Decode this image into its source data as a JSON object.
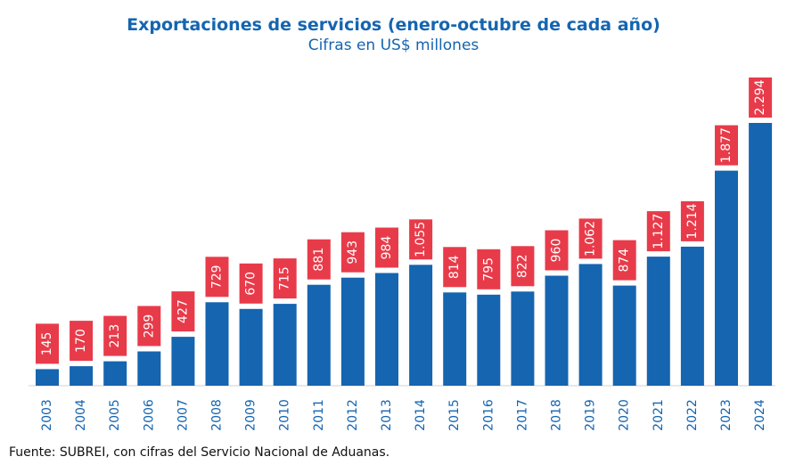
{
  "chart_data": {
    "type": "bar",
    "title": "Exportaciones de servicios (enero-octubre de cada año)",
    "subtitle": "Cifras en US$ millones",
    "xlabel": "",
    "ylabel": "",
    "ylim": [
      0,
      2600
    ],
    "grid": false,
    "categories": [
      "2003",
      "2004",
      "2005",
      "2006",
      "2007",
      "2008",
      "2009",
      "2010",
      "2011",
      "2012",
      "2013",
      "2014",
      "2015",
      "2016",
      "2017",
      "2018",
      "2019",
      "2020",
      "2021",
      "2022",
      "2023",
      "2024"
    ],
    "values": [
      145,
      170,
      213,
      299,
      427,
      729,
      670,
      715,
      881,
      943,
      984,
      1055,
      814,
      795,
      822,
      960,
      1062,
      874,
      1127,
      1214,
      1877,
      2294
    ],
    "data_labels": [
      "145",
      "170",
      "213",
      "299",
      "427",
      "729",
      "670",
      "715",
      "881",
      "943",
      "984",
      "1.055",
      "814",
      "795",
      "822",
      "960",
      "1.062",
      "874",
      "1.127",
      "1.214",
      "1.877",
      "2.294"
    ],
    "colors": {
      "bar": "#1565b0",
      "label_box": "#e83b4a",
      "text": "#1565b0"
    }
  },
  "source": "Fuente: SUBREI, con cifras del Servicio Nacional de Aduanas."
}
